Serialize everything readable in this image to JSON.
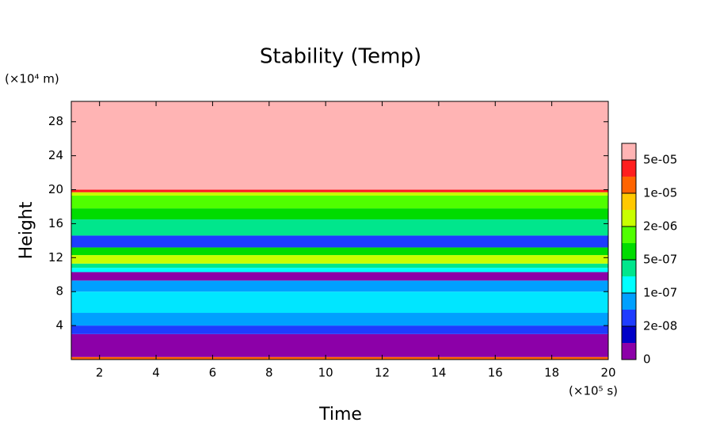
{
  "chart_data": {
    "type": "contour",
    "title": "Stability (Temp)",
    "x_label": "Time",
    "y_label": "Height",
    "x_unit": "(×10⁵ s)",
    "y_unit": "(×10⁴ m)",
    "xlim": [
      1,
      20
    ],
    "xticks": [
      2,
      4,
      6,
      8,
      10,
      12,
      14,
      16,
      18,
      20
    ],
    "ylim": [
      0,
      30.4
    ],
    "yticks": [
      4,
      8,
      12,
      16,
      20,
      24,
      28
    ],
    "bands": [
      {
        "from": 0,
        "to": 0.3,
        "color": "#ff6400"
      },
      {
        "from": 0.3,
        "to": 3,
        "color": "#8c00a8"
      },
      {
        "from": 3,
        "to": 4,
        "color": "#1e3cff"
      },
      {
        "from": 4,
        "to": 5.5,
        "color": "#00a0ff"
      },
      {
        "from": 5.5,
        "to": 8,
        "color": "#00e6ff"
      },
      {
        "from": 8,
        "to": 9.3,
        "color": "#00a0ff"
      },
      {
        "from": 9.3,
        "to": 10.3,
        "color": "#8c00a8"
      },
      {
        "from": 10.3,
        "to": 10.8,
        "color": "#00ffff"
      },
      {
        "from": 10.8,
        "to": 11.3,
        "color": "#00e68c"
      },
      {
        "from": 11.3,
        "to": 12.3,
        "color": "#c8ff00"
      },
      {
        "from": 12.3,
        "to": 13.2,
        "color": "#00dc00"
      },
      {
        "from": 13.2,
        "to": 14.6,
        "color": "#1e3cff"
      },
      {
        "from": 14.6,
        "to": 16.5,
        "color": "#00e68c"
      },
      {
        "from": 16.5,
        "to": 17.8,
        "color": "#00dc00"
      },
      {
        "from": 17.8,
        "to": 19.3,
        "color": "#50ff00"
      },
      {
        "from": 19.3,
        "to": 19.7,
        "color": "#c8ff00"
      },
      {
        "from": 19.7,
        "to": 20,
        "color": "#ff1e1e"
      },
      {
        "from": 20,
        "to": 30.4,
        "color": "#ffb4b4"
      }
    ],
    "colorbar": {
      "colors": [
        "#8c00a8",
        "#0000c8",
        "#1e3cff",
        "#00a0ff",
        "#00ffff",
        "#00e68c",
        "#00dc00",
        "#50ff00",
        "#c8ff00",
        "#ffc800",
        "#ff6400",
        "#ff1e1e",
        "#ffb4b4"
      ],
      "ticks": [
        0,
        {
          "value": 2e-08,
          "label": "2e-08"
        },
        {
          "value": 1e-07,
          "label": "1e-07"
        },
        {
          "value": 5e-07,
          "label": "5e-07"
        },
        {
          "value": 2e-06,
          "label": "2e-06"
        },
        {
          "value": 1e-05,
          "label": "1e-05"
        },
        {
          "value": 5e-05,
          "label": "5e-05"
        }
      ]
    }
  }
}
